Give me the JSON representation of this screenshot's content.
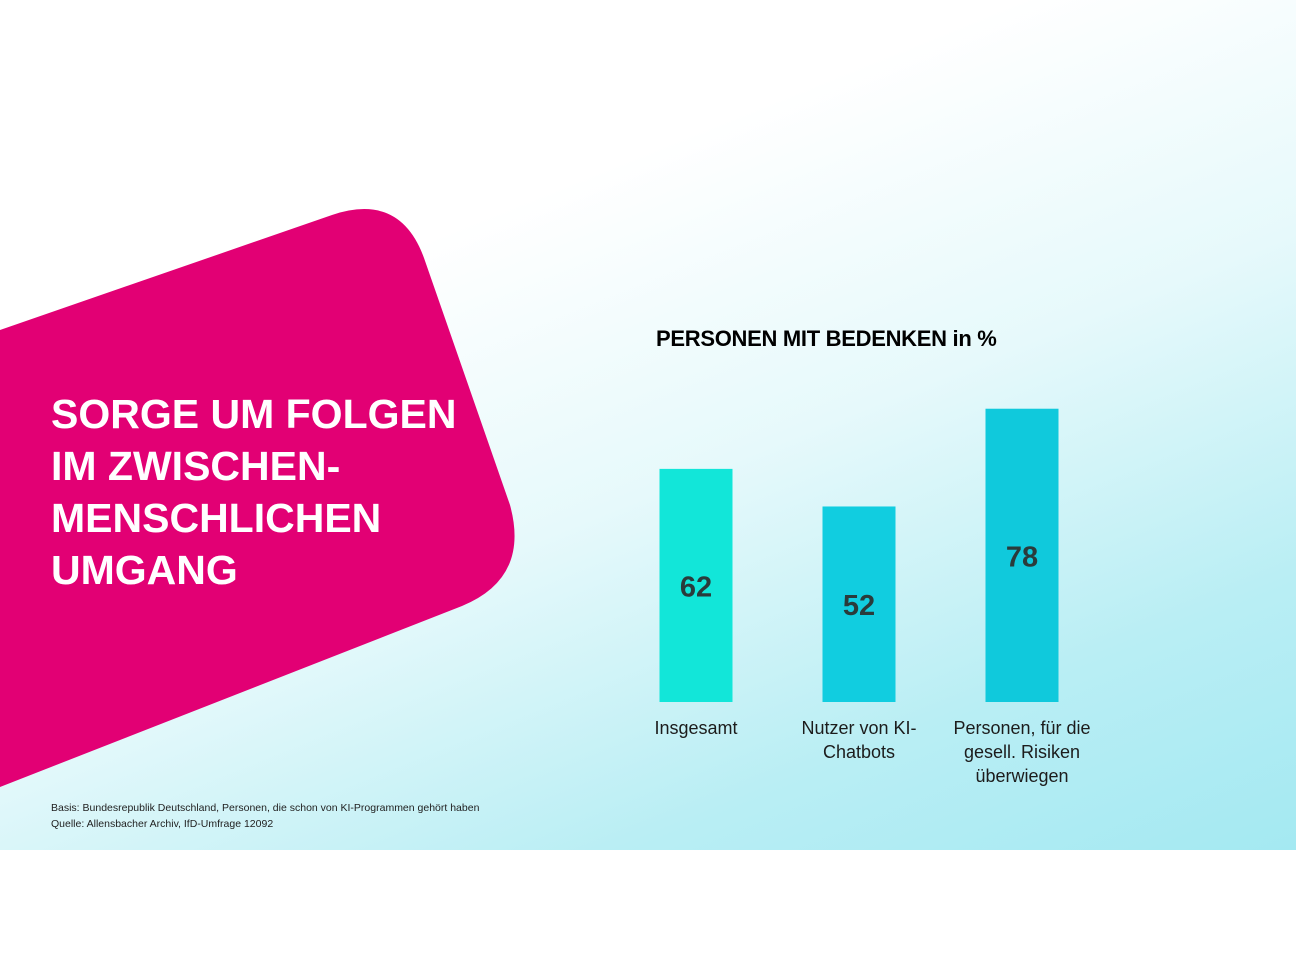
{
  "headline": {
    "lines": [
      "SORGE UM FOLGEN",
      "IM ZWISCHEN-",
      "MENSCHLICHEN",
      "UMGANG"
    ]
  },
  "colors": {
    "magenta": "#e20074",
    "bar_1": "#12e6d9",
    "bar_2": "#11cde0",
    "bar_3": "#10c9dc",
    "value_label": "#2a3b3b"
  },
  "chart_data": {
    "type": "bar",
    "title": "PERSONEN MIT BEDENKEN  in %",
    "categories": [
      "Insgesamt",
      "Nutzer von KI-Chatbots",
      "Personen, für die gesell. Risiken überwiegen"
    ],
    "category_lines": [
      [
        "Insgesamt"
      ],
      [
        "Nutzer von KI-",
        "Chatbots"
      ],
      [
        "Personen, für die",
        "gesell. Risiken",
        "überwiegen"
      ]
    ],
    "values": [
      62,
      52,
      78
    ],
    "value_labels": [
      "62",
      "52",
      "78"
    ],
    "ylim": [
      0,
      100
    ],
    "grid": false,
    "xlabel": "",
    "ylabel": ""
  },
  "footnote": {
    "basis": "Basis: Bundesrepublik Deutschland, Personen, die schon von KI-Programmen gehört haben",
    "source": "Quelle: Allensbacher Archiv, IfD-Umfrage 12092"
  }
}
